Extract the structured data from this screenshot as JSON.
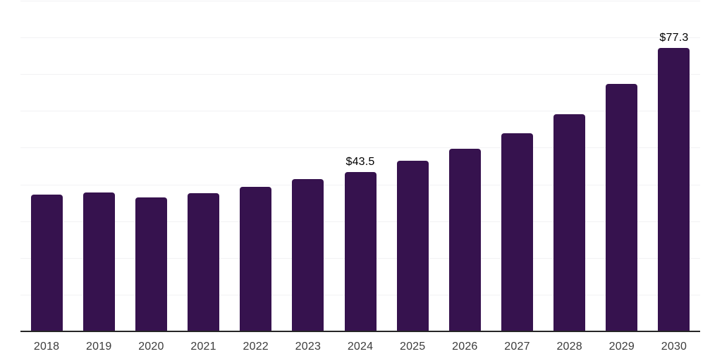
{
  "chart_data": {
    "type": "bar",
    "title": "",
    "xlabel": "",
    "ylabel": "",
    "categories": [
      "2018",
      "2019",
      "2020",
      "2021",
      "2022",
      "2023",
      "2024",
      "2025",
      "2026",
      "2027",
      "2028",
      "2029",
      "2030"
    ],
    "values": [
      37.5,
      38.1,
      36.6,
      37.8,
      39.5,
      41.6,
      43.5,
      46.6,
      49.9,
      54.2,
      59.4,
      67.5,
      77.3
    ],
    "annotations": [
      {
        "category": "2024",
        "label": "$43.5"
      },
      {
        "category": "2030",
        "label": "$77.3"
      }
    ],
    "ylim": [
      0,
      90
    ],
    "grid_step": 10,
    "grid": true,
    "legend": false,
    "y_tick_labels_visible": false,
    "colors": {
      "bar": "#36124E",
      "gridline": "#F2F2F4",
      "axis_line": "#262626",
      "tick_label": "#3C3C3C",
      "annotation_label": "#000000",
      "background": "#FFFFFF"
    }
  }
}
